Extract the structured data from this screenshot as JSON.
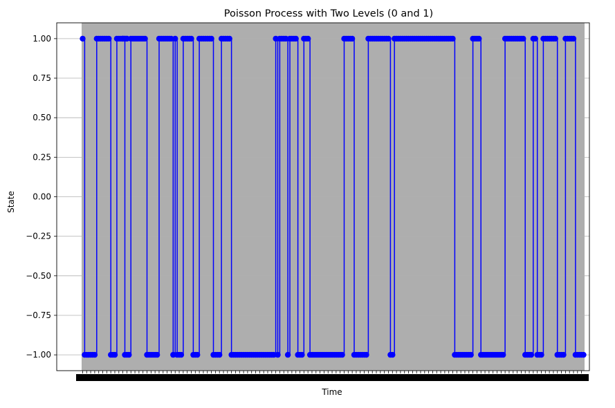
{
  "chart_data": {
    "type": "line",
    "title": "Poisson Process with Two Levels (0 and 1)",
    "xlabel": "Time",
    "ylabel": "State",
    "ylim": [
      -1.1,
      1.1
    ],
    "yticks": [
      "1.00",
      "0.75",
      "0.50",
      "0.25",
      "0.00",
      "−0.25",
      "−0.50",
      "−0.75",
      "−1.00"
    ],
    "ytick_values": [
      1.0,
      0.75,
      0.5,
      0.25,
      0.0,
      -0.25,
      -0.5,
      -0.75,
      -1.0
    ],
    "grid": "y-axis",
    "colors": {
      "series": "#0000ff",
      "background": "#aeaeae",
      "grid": "#b0b0b0"
    },
    "xlim": [
      -0.5,
      249.5
    ],
    "steps": [
      {
        "start": 0,
        "end": 1,
        "state": 1
      },
      {
        "start": 1,
        "end": 7,
        "state": -1
      },
      {
        "start": 7,
        "end": 14,
        "state": 1
      },
      {
        "start": 14,
        "end": 17,
        "state": -1
      },
      {
        "start": 17,
        "end": 20,
        "state": 1
      },
      {
        "start": 20,
        "end": 23,
        "state": 1
      },
      {
        "start": 20,
        "end": 23,
        "state": 1
      },
      {
        "start": 20,
        "end": 20,
        "state": 1
      },
      {
        "start": 20,
        "end": 20,
        "state": 1
      },
      {
        "start": 20,
        "end": 21,
        "state": 1
      },
      {
        "start": 21,
        "end": 24,
        "state": -1
      },
      {
        "start": 24,
        "end": 32,
        "state": 1
      },
      {
        "start": 32,
        "end": 38,
        "state": -1
      },
      {
        "start": 38,
        "end": 44,
        "state": 1
      },
      {
        "start": 44,
        "end": 45,
        "state": 1
      },
      {
        "start": 45,
        "end": 46,
        "state": -1
      },
      {
        "start": 46,
        "end": 47,
        "state": 1
      },
      {
        "start": 47,
        "end": 50,
        "state": -1
      },
      {
        "start": 50,
        "end": 55,
        "state": 1
      },
      {
        "start": 55,
        "end": 58,
        "state": -1
      },
      {
        "start": 58,
        "end": 64,
        "state": 1
      },
      {
        "start": 64,
        "end": 64,
        "state": 1
      },
      {
        "start": 64,
        "end": 64,
        "state": 1
      },
      {
        "start": 64,
        "end": 64,
        "state": 1
      },
      {
        "start": 64,
        "end": 64,
        "state": 1
      },
      {
        "start": 64,
        "end": 64,
        "state": 1
      },
      {
        "start": 64,
        "end": 65,
        "state": 1
      },
      {
        "start": 65,
        "end": 69,
        "state": -1
      },
      {
        "start": 69,
        "end": 72,
        "state": 1
      },
      {
        "start": 72,
        "end": 74,
        "state": 1
      },
      {
        "start": 74,
        "end": 76,
        "state": -1
      },
      {
        "start": 76,
        "end": 78,
        "state": -1
      },
      {
        "start": 78,
        "end": 96,
        "state": -1
      },
      {
        "start": 96,
        "end": 97,
        "state": 1
      },
      {
        "start": 97,
        "end": 98,
        "state": -1
      },
      {
        "start": 98,
        "end": 102,
        "state": 1
      },
      {
        "start": 102,
        "end": 103,
        "state": -1
      },
      {
        "start": 103,
        "end": 106,
        "state": 1
      },
      {
        "start": 106,
        "end": 106,
        "state": 1
      },
      {
        "start": 106,
        "end": 106,
        "state": 1
      },
      {
        "start": 106,
        "end": 106,
        "state": 1
      },
      {
        "start": 106,
        "end": 107,
        "state": 1
      },
      {
        "start": 107,
        "end": 110,
        "state": -1
      },
      {
        "start": 110,
        "end": 111,
        "state": 1
      },
      {
        "start": 111,
        "end": 113,
        "state": 1
      },
      {
        "start": 113,
        "end": 128,
        "state": -1
      },
      {
        "start": 128,
        "end": 129,
        "state": -1
      },
      {
        "start": 129,
        "end": 130,
        "state": -1
      },
      {
        "start": 130,
        "end": 133,
        "state": 1
      },
      {
        "start": 133,
        "end": 134,
        "state": 1
      },
      {
        "start": 134,
        "end": 135,
        "state": 1
      },
      {
        "start": 135,
        "end": 142,
        "state": -1
      },
      {
        "start": 142,
        "end": 145,
        "state": 1
      },
      {
        "start": 145,
        "end": 153,
        "state": 1
      },
      {
        "start": 153,
        "end": 155,
        "state": -1
      },
      {
        "start": 155,
        "end": 157,
        "state": 1
      },
      {
        "start": 157,
        "end": 159,
        "state": 1
      },
      {
        "start": 159,
        "end": 160,
        "state": 1
      },
      {
        "start": 160,
        "end": 161,
        "state": 1
      },
      {
        "start": 161,
        "end": 162,
        "state": 1
      },
      {
        "start": 162,
        "end": 164,
        "state": 1
      },
      {
        "start": 164,
        "end": 185,
        "state": 1
      },
      {
        "start": 185,
        "end": 194,
        "state": -1
      },
      {
        "start": 194,
        "end": 198,
        "state": 1
      },
      {
        "start": 198,
        "end": 210,
        "state": -1
      },
      {
        "start": 210,
        "end": 220,
        "state": 1
      },
      {
        "start": 220,
        "end": 224,
        "state": -1
      },
      {
        "start": 224,
        "end": 226,
        "state": 1
      },
      {
        "start": 226,
        "end": 229,
        "state": -1
      },
      {
        "start": 229,
        "end": 236,
        "state": 1
      },
      {
        "start": 236,
        "end": 240,
        "state": -1
      },
      {
        "start": 240,
        "end": 245,
        "state": 1
      },
      {
        "start": 245,
        "end": 250,
        "state": -1
      }
    ]
  }
}
